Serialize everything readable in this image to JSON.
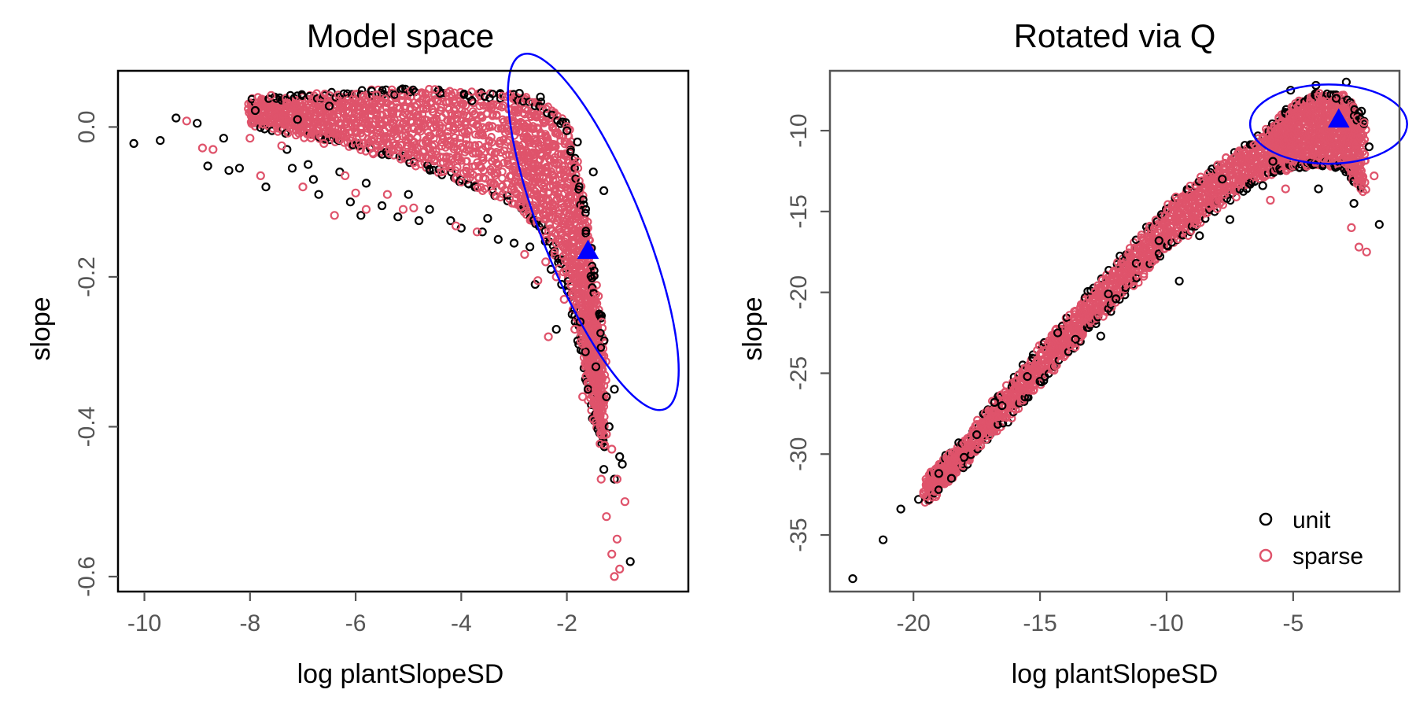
{
  "figure": {
    "panels": [
      {
        "title": "Model space",
        "xlabel": "log plantSlopeSD",
        "ylabel": "slope"
      },
      {
        "title": "Rotated via Q",
        "xlabel": "log plantSlopeSD",
        "ylabel": "slope"
      }
    ]
  },
  "chart_data": [
    {
      "type": "scatter",
      "title": "Model space",
      "xlabel": "log plantSlopeSD",
      "ylabel": "slope",
      "xlim": [
        -10.5,
        0.3
      ],
      "ylim": [
        -0.62,
        0.075
      ],
      "xticks": [
        -10,
        -8,
        -6,
        -4,
        -2
      ],
      "xtick_labels": [
        "-10",
        "-8",
        "-6",
        "-4",
        "-2"
      ],
      "yticks": [
        0.0,
        -0.2,
        -0.4,
        -0.6
      ],
      "ytick_labels": [
        "0.0",
        "-0.2",
        "-0.4",
        "-0.6"
      ],
      "grid": false,
      "legend": null,
      "series": [
        {
          "name": "unit",
          "color": "#000000",
          "marker": "open-circle",
          "points": [
            [
              -10.2,
              -0.022
            ],
            [
              -9.7,
              -0.018
            ],
            [
              -9.4,
              0.012
            ],
            [
              -9.0,
              0.005
            ],
            [
              -8.8,
              -0.052
            ],
            [
              -8.5,
              -0.015
            ],
            [
              -8.4,
              -0.058
            ],
            [
              -8.2,
              -0.055
            ],
            [
              -7.9,
              0.022
            ],
            [
              -7.7,
              -0.08
            ],
            [
              -7.5,
              0.038
            ],
            [
              -7.3,
              -0.03
            ],
            [
              -7.1,
              0.01
            ],
            [
              -6.9,
              -0.05
            ],
            [
              -6.7,
              -0.09
            ],
            [
              -6.5,
              0.028
            ],
            [
              -6.3,
              -0.06
            ],
            [
              -6.1,
              -0.1
            ],
            [
              -5.9,
              -0.118
            ],
            [
              -5.7,
              0.048
            ],
            [
              -5.5,
              -0.105
            ],
            [
              -5.2,
              -0.12
            ],
            [
              -5.0,
              -0.09
            ],
            [
              -4.8,
              -0.125
            ],
            [
              -4.6,
              -0.11
            ],
            [
              -4.4,
              0.045
            ],
            [
              -4.2,
              -0.125
            ],
            [
              -4.0,
              -0.135
            ],
            [
              -3.8,
              0.035
            ],
            [
              -3.6,
              -0.14
            ],
            [
              -3.3,
              -0.15
            ],
            [
              -3.0,
              -0.155
            ],
            [
              -2.9,
              0.045
            ],
            [
              -2.7,
              -0.16
            ],
            [
              -2.5,
              0.04
            ],
            [
              -2.3,
              -0.19
            ],
            [
              -2.1,
              -0.21
            ],
            [
              -2.0,
              -0.005
            ],
            [
              -1.9,
              -0.25
            ],
            [
              -1.8,
              -0.02
            ],
            [
              -1.75,
              -0.26
            ],
            [
              -1.65,
              -0.3
            ],
            [
              -1.5,
              -0.06
            ],
            [
              -1.45,
              -0.32
            ],
            [
              -1.3,
              -0.085
            ],
            [
              -1.25,
              -0.36
            ],
            [
              -1.2,
              -0.4
            ],
            [
              -1.1,
              -0.35
            ],
            [
              -1.0,
              -0.44
            ],
            [
              -0.95,
              -0.45
            ],
            [
              -1.3,
              -0.457
            ],
            [
              -1.1,
              -0.47
            ],
            [
              -1.6,
              -0.35
            ],
            [
              -2.2,
              -0.27
            ],
            [
              -2.6,
              -0.21
            ],
            [
              -0.8,
              -0.58
            ],
            [
              -3.5,
              -0.122
            ],
            [
              -5.8,
              -0.075
            ],
            [
              -6.8,
              -0.07
            ],
            [
              -7.2,
              -0.055
            ]
          ]
        },
        {
          "name": "sparse",
          "color": "#DF536B",
          "marker": "open-circle",
          "points": [
            [
              -9.2,
              0.008
            ],
            [
              -8.9,
              -0.028
            ],
            [
              -8.0,
              -0.015
            ],
            [
              -7.8,
              -0.065
            ],
            [
              -7.6,
              0.042
            ],
            [
              -7.4,
              -0.025
            ],
            [
              -7.0,
              -0.08
            ],
            [
              -6.6,
              -0.022
            ],
            [
              -6.4,
              -0.118
            ],
            [
              -6.2,
              -0.065
            ],
            [
              -5.8,
              -0.11
            ],
            [
              -5.6,
              0.043
            ],
            [
              -5.4,
              -0.09
            ],
            [
              -4.9,
              -0.108
            ],
            [
              -4.5,
              0.05
            ],
            [
              -4.1,
              -0.132
            ],
            [
              -3.7,
              -0.14
            ],
            [
              -3.4,
              0.03
            ],
            [
              -3.1,
              0.042
            ],
            [
              -2.8,
              -0.17
            ],
            [
              -2.6,
              -0.05
            ],
            [
              -2.4,
              -0.18
            ],
            [
              -2.2,
              -0.2
            ],
            [
              -2.05,
              -0.23
            ],
            [
              -1.85,
              -0.27
            ],
            [
              -1.7,
              -0.29
            ],
            [
              -1.55,
              -0.31
            ],
            [
              -1.45,
              -0.35
            ],
            [
              -1.35,
              -0.38
            ],
            [
              -1.25,
              -0.41
            ],
            [
              -1.15,
              -0.43
            ],
            [
              -1.05,
              -0.47
            ],
            [
              -1.25,
              -0.52
            ],
            [
              -1.05,
              -0.55
            ],
            [
              -1.15,
              -0.57
            ],
            [
              -1.0,
              -0.59
            ],
            [
              -1.1,
              -0.6
            ],
            [
              -1.35,
              -0.47
            ],
            [
              -0.9,
              -0.5
            ],
            [
              -2.35,
              -0.28
            ],
            [
              -2.55,
              -0.205
            ],
            [
              -1.7,
              -0.36
            ],
            [
              -8.7,
              -0.03
            ],
            [
              -6.0,
              -0.088
            ],
            [
              -5.1,
              -0.11
            ]
          ],
          "dense_band": [
            [
              -8.0,
              0.005,
              0.035
            ],
            [
              -7.0,
              -0.01,
              0.04
            ],
            [
              -6.0,
              -0.025,
              0.045
            ],
            [
              -5.0,
              -0.045,
              0.048
            ],
            [
              -4.0,
              -0.07,
              0.045
            ],
            [
              -3.0,
              -0.1,
              0.04
            ],
            [
              -2.5,
              -0.13,
              0.03
            ],
            [
              -2.0,
              -0.2,
              0.0
            ],
            [
              -1.7,
              -0.3,
              -0.1
            ],
            [
              -1.5,
              -0.38,
              -0.2
            ],
            [
              -1.3,
              -0.43,
              -0.3
            ]
          ]
        }
      ],
      "marker_point": {
        "x": -1.6,
        "y": -0.165,
        "shape": "triangle",
        "color": "#0000FF"
      },
      "ellipse": {
        "cx": -1.5,
        "cy": -0.14,
        "rx": 0.95,
        "ry": 0.255,
        "angle_deg": 22,
        "color": "#0000FF"
      }
    },
    {
      "type": "scatter",
      "title": "Rotated via Q",
      "xlabel": "log plantSlopeSD",
      "ylabel": "slope",
      "xlim": [
        -23.3,
        -0.8
      ],
      "ylim": [
        -38.5,
        -6.3
      ],
      "xticks": [
        -20,
        -15,
        -10,
        -5
      ],
      "xtick_labels": [
        "-20",
        "-15",
        "-10",
        "-5"
      ],
      "yticks": [
        -10,
        -15,
        -20,
        -25,
        -30,
        -35
      ],
      "ytick_labels": [
        "-10",
        "-15",
        "-20",
        "-25",
        "-30",
        "-35"
      ],
      "grid": false,
      "legend": {
        "placement": "bottom-right",
        "entries": [
          {
            "label": "unit",
            "color": "#000000"
          },
          {
            "label": "sparse",
            "color": "#DF536B"
          }
        ]
      },
      "series": [
        {
          "name": "unit",
          "color": "#000000",
          "marker": "open-circle",
          "points": [
            [
              -22.4,
              -37.7
            ],
            [
              -21.2,
              -35.3
            ],
            [
              -20.5,
              -33.4
            ],
            [
              -19.8,
              -32.8
            ],
            [
              -18.5,
              -31.5
            ],
            [
              -18.0,
              -30.2
            ],
            [
              -17.5,
              -28.8
            ],
            [
              -16.5,
              -27.0
            ],
            [
              -15.5,
              -25.2
            ],
            [
              -14.3,
              -22.5
            ],
            [
              -13.6,
              -22.9
            ],
            [
              -12.6,
              -22.7
            ],
            [
              -12.0,
              -20.4
            ],
            [
              -11.2,
              -18.2
            ],
            [
              -10.3,
              -16.8
            ],
            [
              -9.5,
              -19.3
            ],
            [
              -8.7,
              -16.5
            ],
            [
              -7.5,
              -15.5
            ],
            [
              -6.2,
              -13.4
            ],
            [
              -5.1,
              -7.5
            ],
            [
              -4.1,
              -7.2
            ],
            [
              -2.9,
              -7.0
            ],
            [
              -3.3,
              -8.0
            ],
            [
              -2.3,
              -8.8
            ],
            [
              -2.0,
              -11.0
            ],
            [
              -1.6,
              -15.8
            ],
            [
              -2.6,
              -14.5
            ],
            [
              -4.0,
              -13.6
            ],
            [
              -5.8,
              -11.9
            ],
            [
              -7.8,
              -13.0
            ],
            [
              -12.3,
              -20.1
            ],
            [
              -15.0,
              -25.5
            ],
            [
              -16.8,
              -26.8
            ],
            [
              -19.0,
              -31.2
            ]
          ]
        },
        {
          "name": "sparse",
          "color": "#DF536B",
          "marker": "open-circle",
          "points": [
            [
              -19.6,
              -32.5
            ],
            [
              -19.4,
              -32.3
            ],
            [
              -18.3,
              -30.4
            ],
            [
              -17.7,
              -29.5
            ],
            [
              -17.3,
              -28.3
            ],
            [
              -16.7,
              -27.7
            ],
            [
              -16.3,
              -26.6
            ],
            [
              -15.8,
              -26.1
            ],
            [
              -15.3,
              -24.8
            ],
            [
              -14.6,
              -23.8
            ],
            [
              -13.8,
              -23.3
            ],
            [
              -13.0,
              -21.8
            ],
            [
              -12.0,
              -19.4
            ],
            [
              -11.0,
              -18.3
            ],
            [
              -10.0,
              -16.5
            ],
            [
              -9.0,
              -15.4
            ],
            [
              -8.0,
              -14.0
            ],
            [
              -7.0,
              -12.5
            ],
            [
              -6.0,
              -11.2
            ],
            [
              -5.0,
              -9.2
            ],
            [
              -4.0,
              -8.4
            ],
            [
              -3.0,
              -8.6
            ],
            [
              -2.2,
              -9.5
            ],
            [
              -1.8,
              -12.8
            ],
            [
              -2.1,
              -17.5
            ],
            [
              -2.4,
              -17.2
            ],
            [
              -2.7,
              -16.0
            ],
            [
              -5.3,
              -13.6
            ],
            [
              -5.9,
              -14.3
            ],
            [
              -8.8,
              -15.8
            ]
          ],
          "dense_band": [
            [
              -19.5,
              -33.0,
              -31.5
            ],
            [
              -18.0,
              -30.6,
              -29.2
            ],
            [
              -16.0,
              -27.3,
              -25.3
            ],
            [
              -14.0,
              -23.8,
              -21.8
            ],
            [
              -12.0,
              -20.6,
              -18.4
            ],
            [
              -10.0,
              -17.3,
              -14.8
            ],
            [
              -8.0,
              -14.6,
              -12.2
            ],
            [
              -6.0,
              -12.6,
              -10.1
            ],
            [
              -5.0,
              -12.2,
              -8.5
            ],
            [
              -4.0,
              -12.0,
              -7.8
            ],
            [
              -3.0,
              -12.2,
              -7.9
            ],
            [
              -2.2,
              -13.8,
              -9.6
            ]
          ]
        }
      ],
      "marker_point": {
        "x": -3.2,
        "y": -9.3,
        "shape": "triangle",
        "color": "#0000FF"
      },
      "ellipse": {
        "cx": -3.6,
        "cy": -9.6,
        "rx": 3.1,
        "ry": 2.45,
        "angle_deg": 0,
        "color": "#0000FF"
      }
    }
  ]
}
